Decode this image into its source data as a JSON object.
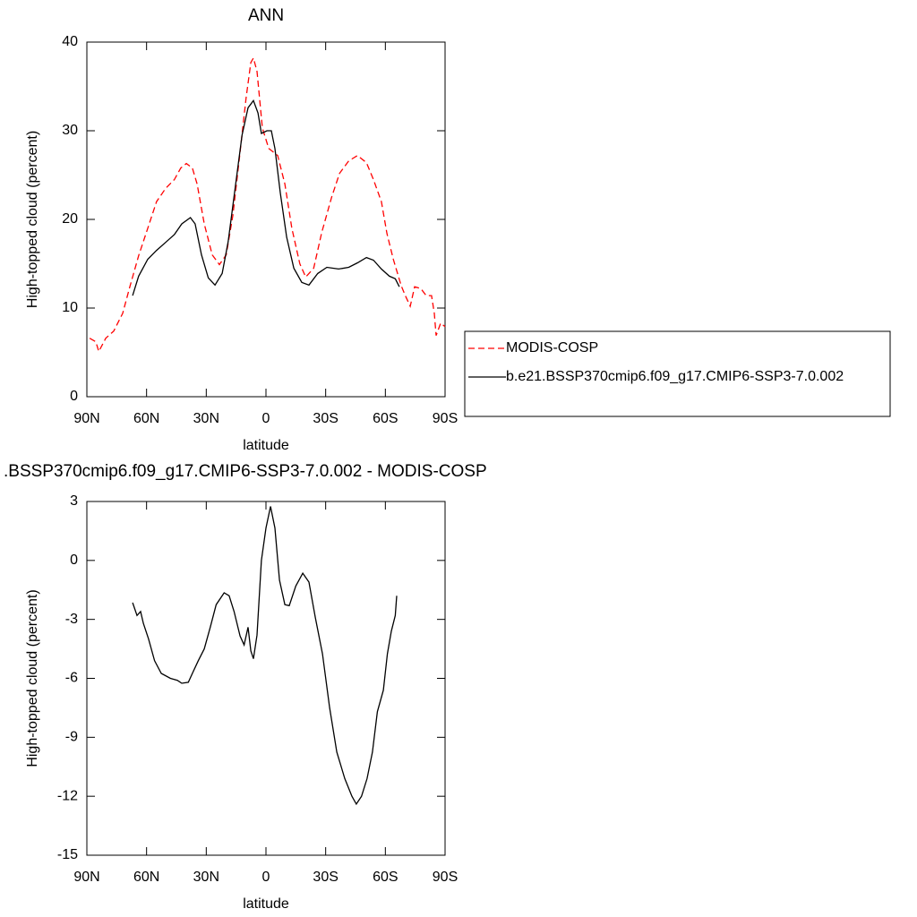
{
  "chart_data": [
    {
      "type": "line",
      "title": "ANN",
      "xlabel": "latitude",
      "ylabel": "High-topped cloud (percent)",
      "xlim": [
        90,
        -90
      ],
      "xticks": [
        {
          "value": 90,
          "label": "90N"
        },
        {
          "value": 60,
          "label": "60N"
        },
        {
          "value": 30,
          "label": "30N"
        },
        0,
        {
          "value": -30,
          "label": "30S"
        },
        {
          "value": -60,
          "label": "60S"
        },
        {
          "value": -90,
          "label": "90S"
        }
      ],
      "ylim": [
        0,
        40
      ],
      "yticks": [
        0,
        10,
        20,
        30,
        40
      ],
      "legend": "right",
      "series": [
        {
          "name": "MODIS-COSP",
          "color": "#ff0000",
          "dash": "dashed",
          "x": [
            88.6,
            85.5,
            84,
            80.5,
            76.5,
            72,
            68.4,
            64,
            59.4,
            55,
            50.4,
            46,
            42.8,
            40,
            37,
            34.6,
            31,
            27,
            23.4,
            20,
            16.6,
            13,
            10,
            7.6,
            6.3,
            4.5,
            1.8,
            -1.4,
            -5.9,
            -9.5,
            -13,
            -17,
            -20,
            -24,
            -28,
            -33,
            -37,
            -41.6,
            -46,
            -50.5,
            -54,
            -58,
            -60.8,
            -64,
            -68,
            -70,
            -72.5,
            -74.7,
            -77.8,
            -80.5,
            -83.2,
            -84.6,
            -85.5,
            -87.8,
            -90
          ],
          "values": [
            6.6,
            6.2,
            5.1,
            6.6,
            7.4,
            9.4,
            12.4,
            15.9,
            19,
            22,
            23.5,
            24.5,
            25.8,
            26.3,
            25.8,
            24,
            19.5,
            16,
            14.9,
            16,
            20.5,
            27.6,
            33.7,
            37.7,
            38.2,
            36.7,
            30.3,
            28,
            27.2,
            24,
            19,
            15,
            13.5,
            14.5,
            18.5,
            22.5,
            25.2,
            26.6,
            27.2,
            26.4,
            24.5,
            22,
            18.4,
            15.5,
            12.5,
            11.4,
            10.2,
            12.4,
            12.2,
            11.4,
            11.4,
            9.4,
            6.9,
            8.3,
            7.9
          ]
        },
        {
          "name": "b.e21.BSSP370cmip6.f09_g17.CMIP6-SSP3-7.0.002",
          "color": "#000000",
          "dash": "solid",
          "x": [
            67,
            64,
            59.4,
            55,
            50,
            46,
            42.3,
            38,
            35.6,
            32.4,
            29,
            25.6,
            22,
            19,
            15.8,
            12,
            9,
            6.3,
            4,
            2.3,
            -0.5,
            -2.7,
            -4.5,
            -7.2,
            -10.4,
            -14,
            -18,
            -21.6,
            -26,
            -30.6,
            -36.5,
            -41.6,
            -46,
            -50.5,
            -54,
            -58,
            -62,
            -65,
            -67
          ],
          "values": [
            11.4,
            13.6,
            15.5,
            16.5,
            17.5,
            18.3,
            19.5,
            20.2,
            19.5,
            16,
            13.4,
            12.6,
            13.9,
            17.5,
            23,
            29.5,
            32.6,
            33.4,
            32,
            29.7,
            30,
            30,
            28,
            23,
            18,
            14.5,
            12.9,
            12.6,
            13.9,
            14.6,
            14.4,
            14.6,
            15.1,
            15.7,
            15.4,
            14.4,
            13.6,
            13.3,
            12.4
          ]
        }
      ]
    },
    {
      "type": "line",
      "title": ".BSSP370cmip6.f09_g17.CMIP6-SSP3-7.0.002 - MODIS-COSP",
      "xlabel": "latitude",
      "ylabel": "High-topped cloud (percent)",
      "xlim": [
        90,
        -90
      ],
      "xticks": [
        {
          "value": 90,
          "label": "90N"
        },
        {
          "value": 60,
          "label": "60N"
        },
        {
          "value": 30,
          "label": "30N"
        },
        0,
        {
          "value": -30,
          "label": "30S"
        },
        {
          "value": -60,
          "label": "60S"
        },
        {
          "value": -90,
          "label": "90S"
        }
      ],
      "ylim": [
        -15,
        3
      ],
      "yticks": [
        3,
        0,
        -3,
        -6,
        -9,
        -12,
        -15
      ],
      "series": [
        {
          "color": "#000000",
          "dash": "solid",
          "x": [
            67,
            64.8,
            63,
            61.6,
            59,
            56,
            52.6,
            48,
            44.5,
            42.3,
            39,
            37,
            34,
            31,
            28,
            25,
            21,
            18.5,
            16,
            13,
            11,
            9,
            7.6,
            6.3,
            4.5,
            2.3,
            0,
            -2.3,
            -4.5,
            -6.8,
            -9.5,
            -11.7,
            -15,
            -18.5,
            -21.6,
            -24.8,
            -28.4,
            -32,
            -35.6,
            -39.6,
            -43.2,
            -45.4,
            -48,
            -50.8,
            -53.5,
            -56,
            -59,
            -61,
            -63,
            -65,
            -65.7
          ],
          "values": [
            -2.15,
            -2.8,
            -2.6,
            -3.2,
            -4,
            -5.1,
            -5.75,
            -6,
            -6.1,
            -6.25,
            -6.2,
            -5.75,
            -5.1,
            -4.5,
            -3.4,
            -2.25,
            -1.65,
            -1.8,
            -2.6,
            -3.85,
            -4.3,
            -3.4,
            -4.6,
            -5,
            -3.8,
            0,
            1.65,
            2.75,
            1.65,
            -1,
            -2.25,
            -2.3,
            -1.3,
            -0.65,
            -1.1,
            -2.9,
            -4.75,
            -7.5,
            -9.75,
            -11.1,
            -12,
            -12.4,
            -12,
            -11.1,
            -9.75,
            -7.7,
            -6.6,
            -4.75,
            -3.6,
            -2.8,
            -1.8
          ]
        }
      ]
    }
  ]
}
